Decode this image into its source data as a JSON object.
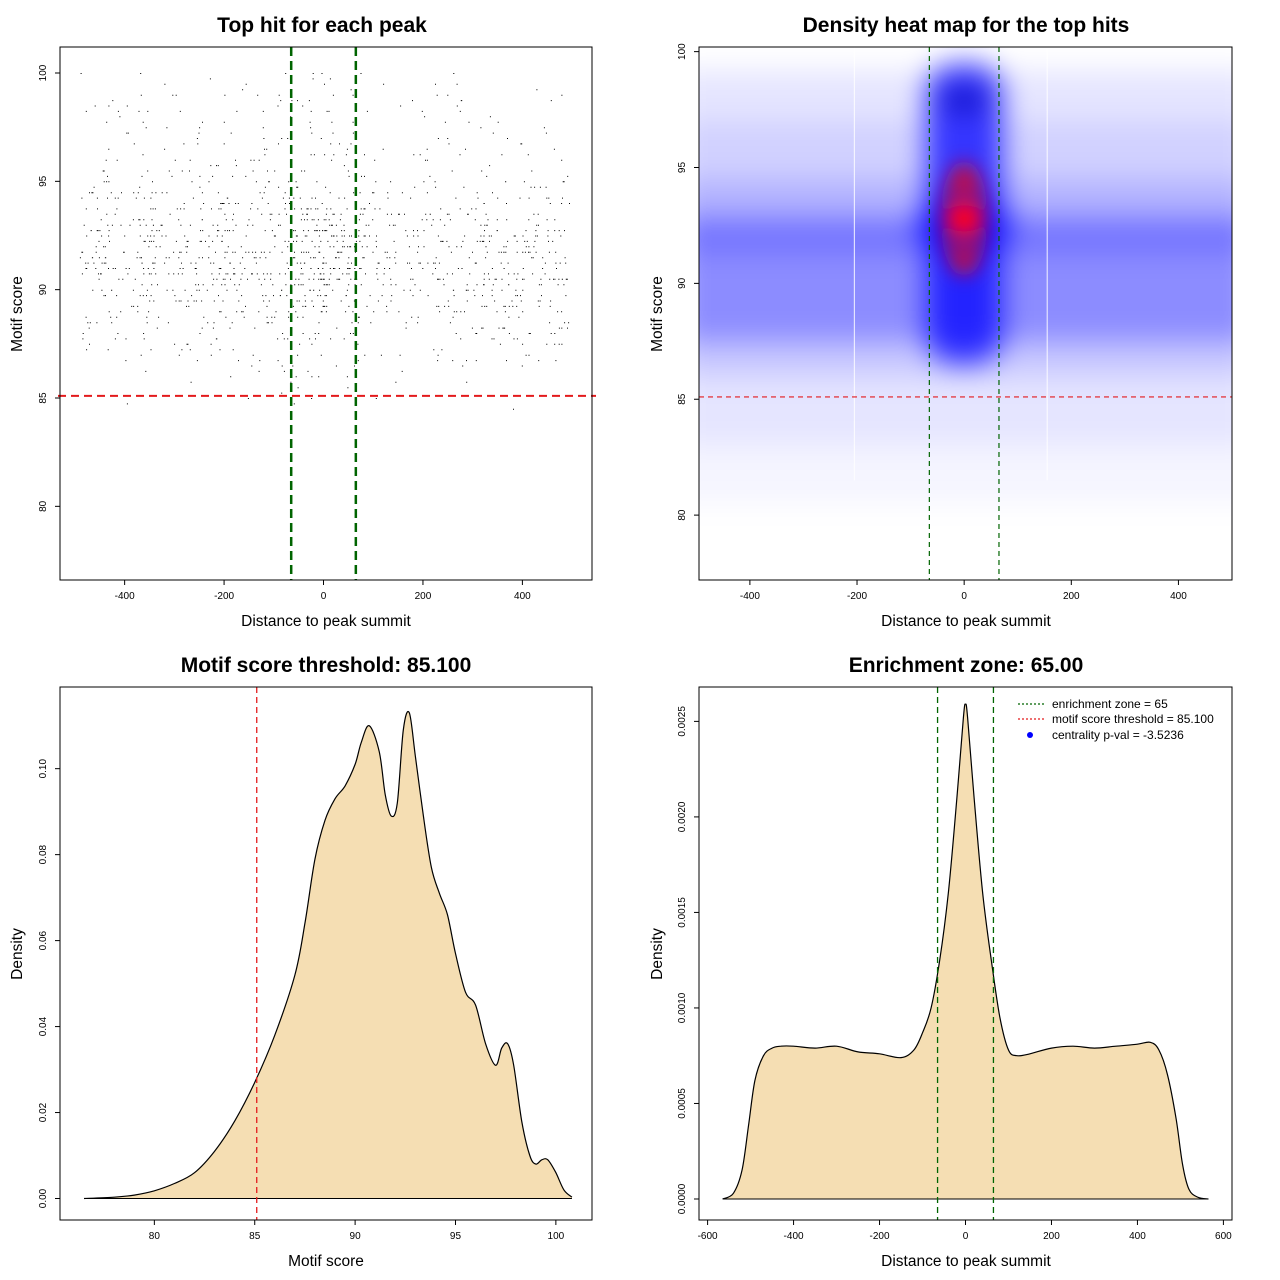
{
  "chart_data": [
    {
      "id": "scatter",
      "type": "scatter",
      "title": "Top hit for each peak",
      "xlabel": "Distance to peak summit",
      "ylabel": "Motif score",
      "xlim": [
        -530,
        540
      ],
      "ylim": [
        76.6,
        101.2
      ],
      "xticks": [
        -400,
        -200,
        0,
        200,
        400
      ],
      "yticks": [
        80,
        85,
        90,
        95,
        100
      ],
      "x_range": [
        -490,
        495
      ],
      "score_max": 100,
      "threshold": 85.1,
      "zone": [
        -65,
        65
      ],
      "colors": {
        "points": "#000000",
        "threshold": "#e31a1c",
        "zone": "#006400"
      }
    },
    {
      "id": "heatmap",
      "type": "heatmap",
      "title": "Density heat map for the top hits",
      "xlabel": "Distance to peak summit",
      "ylabel": "Motif score",
      "xlim": [
        -495,
        500
      ],
      "ylim": [
        77.2,
        100.2
      ],
      "xticks": [
        -400,
        -200,
        0,
        200,
        400
      ],
      "yticks": [
        80,
        85,
        90,
        95,
        100
      ],
      "threshold": 85.1,
      "zone": [
        -65,
        65
      ],
      "colors": {
        "low": "#ffffff",
        "mid": "#0000ff",
        "high": "#ff0000",
        "threshold": "#e31a1c",
        "zone": "#006400"
      }
    },
    {
      "id": "score-density",
      "type": "area",
      "title": "Motif score threshold: 85.100",
      "xlabel": "Motif score",
      "ylabel": "Density",
      "xlim": [
        75.3,
        101.8
      ],
      "ylim": [
        -0.005,
        0.119
      ],
      "xticks": [
        80,
        85,
        90,
        95,
        100
      ],
      "yticks": [
        0.0,
        0.02,
        0.04,
        0.06,
        0.08,
        0.1
      ],
      "ytick_labels": [
        "0.00",
        "0.02",
        "0.04",
        "0.06",
        "0.08",
        "0.10"
      ],
      "threshold": 85.1,
      "x": [
        76.5,
        78,
        79,
        80,
        81,
        82,
        83,
        84,
        85,
        86,
        87,
        87.5,
        88,
        88.5,
        89,
        89.5,
        90,
        90.3,
        90.7,
        91.2,
        91.5,
        91.8,
        92.1,
        92.4,
        92.7,
        93,
        93.4,
        93.8,
        94.2,
        94.6,
        95,
        95.5,
        96,
        96.5,
        97,
        97.3,
        97.6,
        97.9,
        98.3,
        98.7,
        99,
        99.3,
        99.6,
        100,
        100.4,
        100.8
      ],
      "y": [
        0.0,
        0.0003,
        0.0008,
        0.0018,
        0.0035,
        0.006,
        0.011,
        0.018,
        0.027,
        0.038,
        0.052,
        0.064,
        0.079,
        0.088,
        0.093,
        0.096,
        0.101,
        0.106,
        0.11,
        0.104,
        0.094,
        0.089,
        0.092,
        0.109,
        0.113,
        0.103,
        0.089,
        0.077,
        0.071,
        0.066,
        0.057,
        0.048,
        0.045,
        0.036,
        0.031,
        0.035,
        0.036,
        0.031,
        0.018,
        0.01,
        0.008,
        0.009,
        0.009,
        0.006,
        0.002,
        0.0003
      ],
      "colors": {
        "fill": "#f5deb3",
        "line": "#000000",
        "threshold": "#e31a1c"
      }
    },
    {
      "id": "distance-density",
      "type": "area",
      "title": "Enrichment zone: 65.00",
      "xlabel": "Distance to peak summit",
      "ylabel": "Density",
      "xlim": [
        -620,
        620
      ],
      "ylim": [
        -0.00011,
        0.00268
      ],
      "xticks": [
        -600,
        -400,
        -200,
        0,
        200,
        400,
        600
      ],
      "yticks": [
        0.0,
        0.0005,
        0.001,
        0.0015,
        0.002,
        0.0025
      ],
      "ytick_labels": [
        "0.0000",
        "0.0005",
        "0.0010",
        "0.0015",
        "0.0020",
        "0.0025"
      ],
      "zone": [
        -65,
        65
      ],
      "x": [
        -565,
        -540,
        -520,
        -505,
        -490,
        -470,
        -450,
        -430,
        -400,
        -350,
        -300,
        -250,
        -200,
        -150,
        -120,
        -100,
        -80,
        -60,
        -40,
        -20,
        -5,
        0,
        5,
        20,
        40,
        60,
        80,
        100,
        120,
        150,
        200,
        250,
        300,
        350,
        400,
        430,
        450,
        470,
        490,
        505,
        520,
        540,
        565
      ],
      "y": [
        0.0,
        3e-05,
        0.00015,
        0.00038,
        0.00062,
        0.00075,
        0.00079,
        0.0008,
        0.0008,
        0.00079,
        0.0008,
        0.00077,
        0.00076,
        0.00074,
        0.00078,
        0.00087,
        0.001,
        0.00125,
        0.0016,
        0.0021,
        0.00252,
        0.00259,
        0.00252,
        0.0021,
        0.0016,
        0.00125,
        0.00095,
        0.00078,
        0.00075,
        0.00076,
        0.00079,
        0.0008,
        0.00079,
        0.0008,
        0.00081,
        0.00082,
        0.00078,
        0.00065,
        0.00042,
        0.00018,
        5e-05,
        1e-05,
        0.0
      ],
      "colors": {
        "fill": "#f5deb3",
        "line": "#000000",
        "zone": "#006400",
        "threshold": "#e31a1c",
        "pval": "#0000ff"
      },
      "legend": {
        "position": "top-right",
        "items": [
          {
            "label": "enrichment zone = 65",
            "kind": "line",
            "color": "#006400"
          },
          {
            "label": "motif score threshold = 85.100",
            "kind": "line",
            "color": "#e31a1c"
          },
          {
            "label": "centrality p-val = -3.5236",
            "kind": "point",
            "color": "#0000ff"
          }
        ]
      }
    }
  ]
}
